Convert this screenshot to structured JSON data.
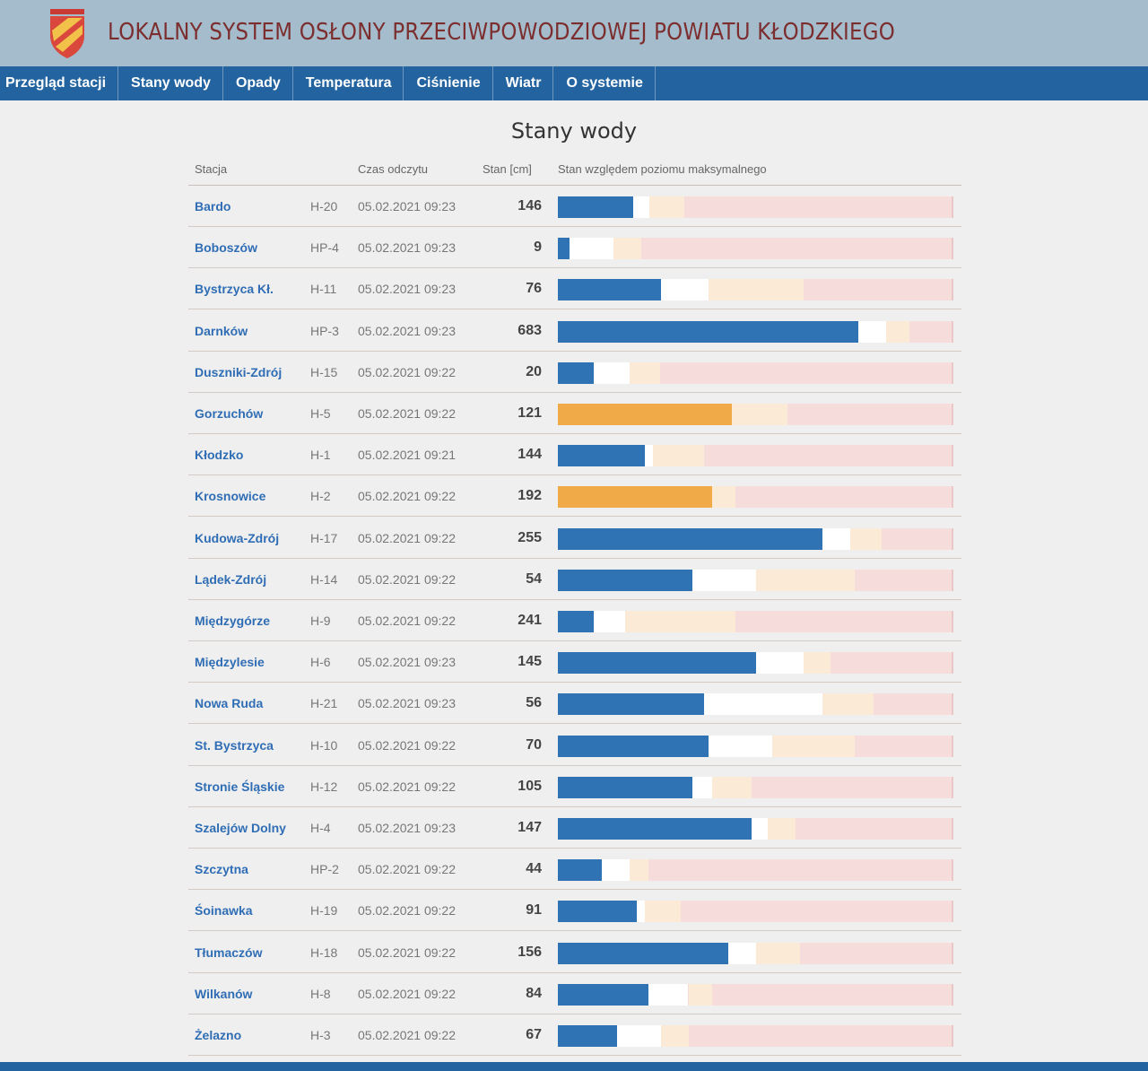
{
  "header": {
    "title": "LOKALNY SYSTEM OSŁONY PRZECIWPOWODZIOWEJ POWIATU KŁODZKIEGO",
    "logo_icon": "shield-crest-icon"
  },
  "nav": [
    {
      "label": "Przegląd stacji"
    },
    {
      "label": "Stany wody"
    },
    {
      "label": "Opady"
    },
    {
      "label": "Temperatura"
    },
    {
      "label": "Ciśnienie"
    },
    {
      "label": "Wiatr"
    },
    {
      "label": "O systemie"
    }
  ],
  "page_title": "Stany wody",
  "table": {
    "headers": {
      "station": "Stacja",
      "time": "Czas odczytu",
      "level": "Stan [cm]",
      "relative": "Stan względem poziomu maksymalnego"
    },
    "colors": {
      "normal": "#2f73b5",
      "warning": "#f0aa47",
      "white_zone": "#ffffff",
      "cream_zone": "#fbead5",
      "pink_zone": "#f7dcdc"
    },
    "rows": [
      {
        "name": "Bardo",
        "code": "H-20",
        "time": "05.02.2021 09:23",
        "value": "146",
        "state": "normal",
        "fill": 0.19,
        "white_end": 0.23,
        "cream_end": 0.32
      },
      {
        "name": "Boboszów",
        "code": "HP-4",
        "time": "05.02.2021 09:23",
        "value": "9",
        "state": "normal",
        "fill": 0.03,
        "white_end": 0.14,
        "cream_end": 0.21
      },
      {
        "name": "Bystrzyca Kł.",
        "code": "H-11",
        "time": "05.02.2021 09:23",
        "value": "76",
        "state": "normal",
        "fill": 0.26,
        "white_end": 0.38,
        "cream_end": 0.62
      },
      {
        "name": "Darnków",
        "code": "HP-3",
        "time": "05.02.2021 09:23",
        "value": "683",
        "state": "normal",
        "fill": 0.76,
        "white_end": 0.83,
        "cream_end": 0.89
      },
      {
        "name": "Duszniki-Zdrój",
        "code": "H-15",
        "time": "05.02.2021 09:22",
        "value": "20",
        "state": "normal",
        "fill": 0.09,
        "white_end": 0.18,
        "cream_end": 0.26
      },
      {
        "name": "Gorzuchów",
        "code": "H-5",
        "time": "05.02.2021 09:22",
        "value": "121",
        "state": "warning",
        "fill": 0.44,
        "white_end": 0.44,
        "cream_end": 0.58
      },
      {
        "name": "Kłodzko",
        "code": "H-1",
        "time": "05.02.2021 09:21",
        "value": "144",
        "state": "normal",
        "fill": 0.22,
        "white_end": 0.24,
        "cream_end": 0.37
      },
      {
        "name": "Krosnowice",
        "code": "H-2",
        "time": "05.02.2021 09:22",
        "value": "192",
        "state": "warning",
        "fill": 0.39,
        "white_end": 0.39,
        "cream_end": 0.45
      },
      {
        "name": "Kudowa-Zdrój",
        "code": "H-17",
        "time": "05.02.2021 09:22",
        "value": "255",
        "state": "normal",
        "fill": 0.67,
        "white_end": 0.74,
        "cream_end": 0.82
      },
      {
        "name": "Lądek-Zdrój",
        "code": "H-14",
        "time": "05.02.2021 09:22",
        "value": "54",
        "state": "normal",
        "fill": 0.34,
        "white_end": 0.5,
        "cream_end": 0.75
      },
      {
        "name": "Międzygórze",
        "code": "H-9",
        "time": "05.02.2021 09:22",
        "value": "241",
        "state": "normal",
        "fill": 0.09,
        "white_end": 0.17,
        "cream_end": 0.45
      },
      {
        "name": "Międzylesie",
        "code": "H-6",
        "time": "05.02.2021 09:23",
        "value": "145",
        "state": "normal",
        "fill": 0.5,
        "white_end": 0.62,
        "cream_end": 0.69
      },
      {
        "name": "Nowa Ruda",
        "code": "H-21",
        "time": "05.02.2021 09:23",
        "value": "56",
        "state": "normal",
        "fill": 0.37,
        "white_end": 0.67,
        "cream_end": 0.8
      },
      {
        "name": "St. Bystrzyca",
        "code": "H-10",
        "time": "05.02.2021 09:22",
        "value": "70",
        "state": "normal",
        "fill": 0.38,
        "white_end": 0.54,
        "cream_end": 0.75
      },
      {
        "name": "Stronie Śląskie",
        "code": "H-12",
        "time": "05.02.2021 09:22",
        "value": "105",
        "state": "normal",
        "fill": 0.34,
        "white_end": 0.39,
        "cream_end": 0.49
      },
      {
        "name": "Szalejów Dolny",
        "code": "H-4",
        "time": "05.02.2021 09:23",
        "value": "147",
        "state": "normal",
        "fill": 0.49,
        "white_end": 0.53,
        "cream_end": 0.6
      },
      {
        "name": "Szczytna",
        "code": "HP-2",
        "time": "05.02.2021 09:22",
        "value": "44",
        "state": "normal",
        "fill": 0.11,
        "white_end": 0.18,
        "cream_end": 0.23
      },
      {
        "name": "Śoinawka",
        "code": "H-19",
        "time": "05.02.2021 09:22",
        "value": "91",
        "state": "normal",
        "fill": 0.2,
        "white_end": 0.22,
        "cream_end": 0.31
      },
      {
        "name": "Tłumaczów",
        "code": "H-18",
        "time": "05.02.2021 09:22",
        "value": "156",
        "state": "normal",
        "fill": 0.43,
        "white_end": 0.5,
        "cream_end": 0.61
      },
      {
        "name": "Wilkanów",
        "code": "H-8",
        "time": "05.02.2021 09:22",
        "value": "84",
        "state": "normal",
        "fill": 0.23,
        "white_end": 0.33,
        "cream_end": 0.39
      },
      {
        "name": "Żelazno",
        "code": "H-3",
        "time": "05.02.2021 09:22",
        "value": "67",
        "state": "normal",
        "fill": 0.15,
        "white_end": 0.26,
        "cream_end": 0.33
      }
    ]
  }
}
